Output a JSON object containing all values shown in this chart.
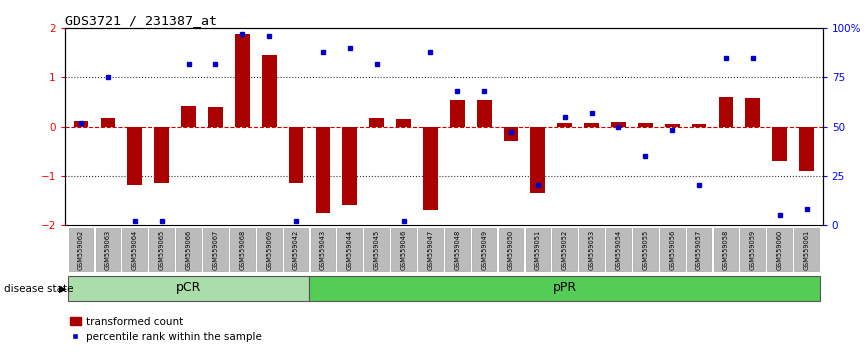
{
  "title": "GDS3721 / 231387_at",
  "samples": [
    "GSM559062",
    "GSM559063",
    "GSM559064",
    "GSM559065",
    "GSM559066",
    "GSM559067",
    "GSM559068",
    "GSM559069",
    "GSM559042",
    "GSM559043",
    "GSM559044",
    "GSM559045",
    "GSM559046",
    "GSM559047",
    "GSM559048",
    "GSM559049",
    "GSM559050",
    "GSM559051",
    "GSM559052",
    "GSM559053",
    "GSM559054",
    "GSM559055",
    "GSM559056",
    "GSM559057",
    "GSM559058",
    "GSM559059",
    "GSM559060",
    "GSM559061"
  ],
  "transformed_count": [
    0.12,
    0.18,
    -1.2,
    -1.15,
    0.42,
    0.4,
    1.88,
    1.45,
    -1.15,
    -1.75,
    -1.6,
    0.18,
    0.15,
    -1.7,
    0.55,
    0.55,
    -0.3,
    -1.35,
    0.07,
    0.07,
    0.1,
    0.07,
    0.05,
    0.05,
    0.6,
    0.58,
    -0.7,
    -0.9
  ],
  "percentile_rank": [
    52,
    75,
    2,
    2,
    82,
    82,
    97,
    96,
    2,
    88,
    90,
    82,
    2,
    88,
    68,
    68,
    47,
    20,
    55,
    57,
    50,
    35,
    48,
    20,
    85,
    85,
    5,
    8
  ],
  "group_pCR_count": 9,
  "bar_color": "#aa0000",
  "dot_color": "#0000cc",
  "dotted_line_color": "#333333",
  "zero_line_color": "#cc0000",
  "ylim": [
    -2.0,
    2.0
  ],
  "yticks": [
    -2,
    -1,
    0,
    1,
    2
  ],
  "right_yticks_pct": [
    0,
    25,
    50,
    75,
    100
  ],
  "right_yticklabels": [
    "0",
    "25",
    "50",
    "75",
    "100%"
  ],
  "pCR_color": "#aaddaa",
  "pPR_color": "#55cc55",
  "label_bar": "transformed count",
  "label_dot": "percentile rank within the sample",
  "tick_bg_color": "#bbbbbb"
}
